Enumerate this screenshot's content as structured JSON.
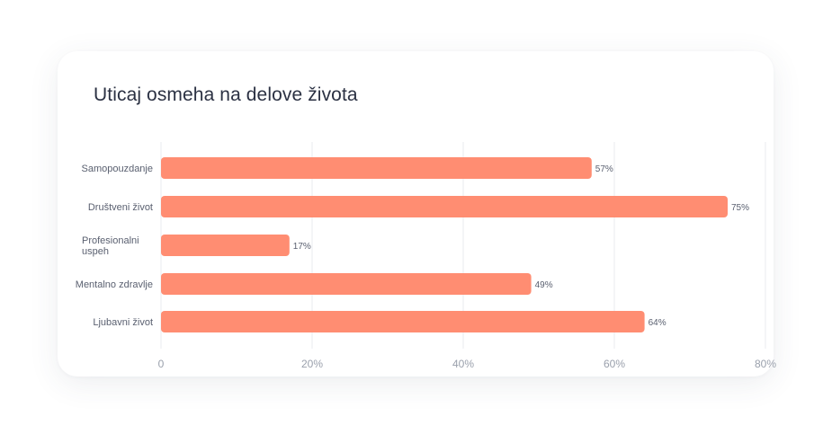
{
  "chart_data": {
    "type": "bar",
    "orientation": "horizontal",
    "title": "Uticaj osmeha na delove života",
    "categories": [
      "Samopouzdanje",
      "Društveni život",
      "Profesionalni uspeh",
      "Mentalno zdravlje",
      "Ljubavni život"
    ],
    "category_lines": [
      [
        "Samopouzdanje"
      ],
      [
        "Društveni život"
      ],
      [
        "Profesionalni",
        "uspeh"
      ],
      [
        "Mentalno zdravlje"
      ],
      [
        "Ljubavni život"
      ]
    ],
    "values": [
      57,
      75,
      17,
      49,
      64
    ],
    "value_labels": [
      "57%",
      "75%",
      "17%",
      "49%",
      "64%"
    ],
    "xlim": [
      0,
      80
    ],
    "x_ticks": [
      0,
      20,
      40,
      60,
      80
    ],
    "x_tick_labels": [
      "0",
      "20%",
      "40%",
      "60%",
      "80%"
    ],
    "grid": true,
    "bar_color": "#ff8d72",
    "grid_color": "#e9ebef",
    "label_color": "#5a6070",
    "tick_color": "#9aa0ac"
  }
}
